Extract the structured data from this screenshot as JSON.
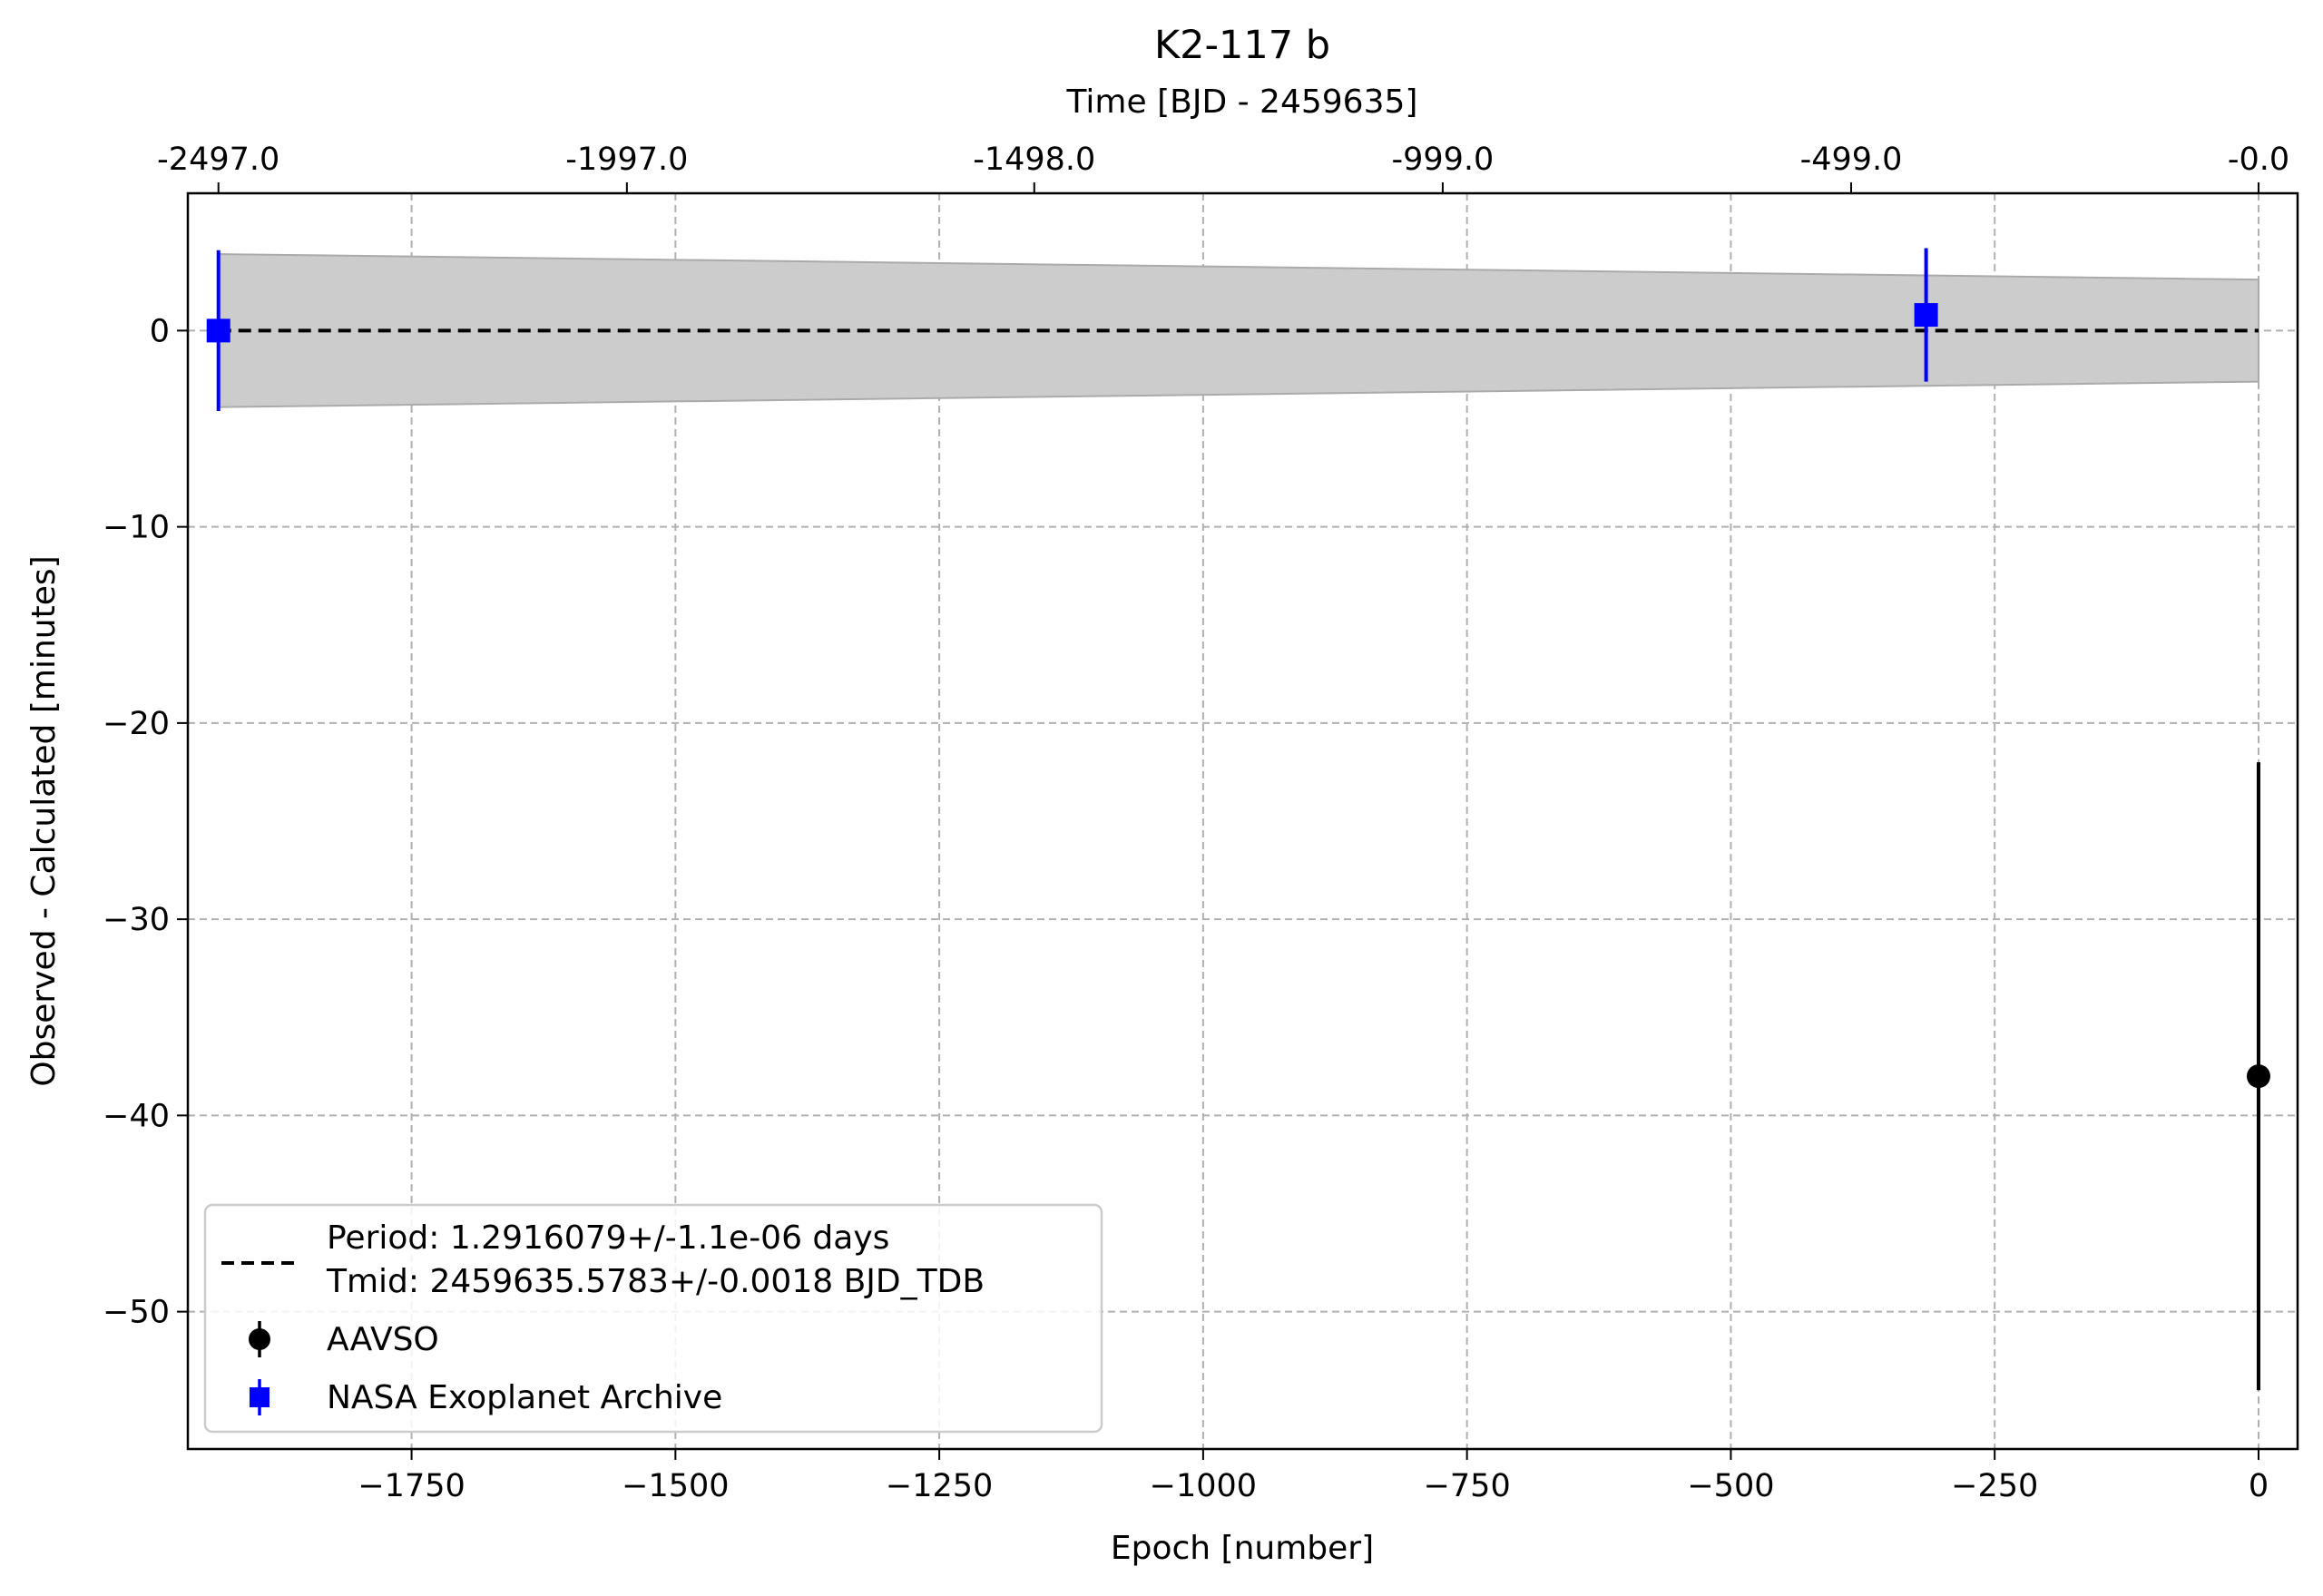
{
  "chart_data": {
    "type": "scatter",
    "title": "K2-117 b",
    "xlabel": "Epoch [number]",
    "ylabel": "Observed - Calculated [minutes]",
    "top_xlabel": "Time [BJD - 2459635]",
    "xlim": [
      -1962,
      37
    ],
    "ylim": [
      -57,
      7
    ],
    "x_ticks": [
      -1750,
      -1500,
      -1250,
      -1000,
      -750,
      -500,
      -250,
      0
    ],
    "x_tick_labels": [
      "−1750",
      "−1500",
      "−1250",
      "−1000",
      "−750",
      "−500",
      "−250",
      "0"
    ],
    "y_ticks": [
      0,
      -10,
      -20,
      -30,
      -40,
      -50
    ],
    "y_tick_labels": [
      "0",
      "−10",
      "−20",
      "−30",
      "−40",
      "−50"
    ],
    "top_x_ticks": [
      -1933,
      -1546,
      -1160,
      -773,
      -386,
      0
    ],
    "top_x_tick_labels": [
      "-2497.0",
      "-1997.0",
      "-1498.0",
      "-999.0",
      "-499.0",
      "-0.0"
    ],
    "grid": true,
    "legend_placement": "lower-left",
    "fit_line": {
      "label_line1": "Period: 1.2916079+/-1.1e-06 days",
      "label_line2": "Tmid: 2459635.5783+/-0.0018 BJD_TDB",
      "x": [
        -1933,
        0
      ],
      "y": [
        0,
        0
      ],
      "color": "#000000",
      "style": "dashed"
    },
    "uncertainty_band": {
      "x": [
        -1933,
        0
      ],
      "upper": [
        3.9,
        2.6
      ],
      "lower": [
        -3.9,
        -2.6
      ],
      "color": "#cccccc",
      "edge_color": "#aaaaaa"
    },
    "series": [
      {
        "name": "AAVSO",
        "marker": "circle",
        "color": "#000000",
        "points": [
          {
            "x": 0,
            "y": -38,
            "yerr": 16
          }
        ]
      },
      {
        "name": "NASA Exoplanet Archive",
        "marker": "square",
        "color": "#0000ff",
        "points": [
          {
            "x": -1933,
            "y": 0,
            "yerr": 4.1
          },
          {
            "x": -315,
            "y": 0.8,
            "yerr": 3.4
          }
        ]
      }
    ]
  }
}
